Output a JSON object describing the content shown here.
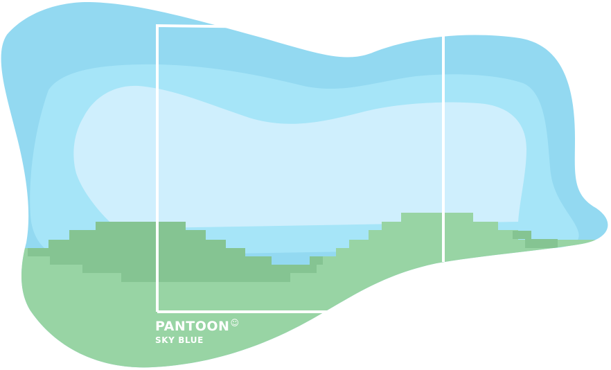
{
  "brand": {
    "name": "PANTOON",
    "mark": "☺",
    "color_name": "SKY BLUE"
  },
  "colors": {
    "sky_outer": "#93d9f1",
    "sky_middle": "#a6e5f8",
    "sky_inner": "#cfeffd",
    "grass_light": "#98d4a4",
    "grass_dark": "#85c492",
    "frame": "#ffffff",
    "text": "#ffffff"
  }
}
